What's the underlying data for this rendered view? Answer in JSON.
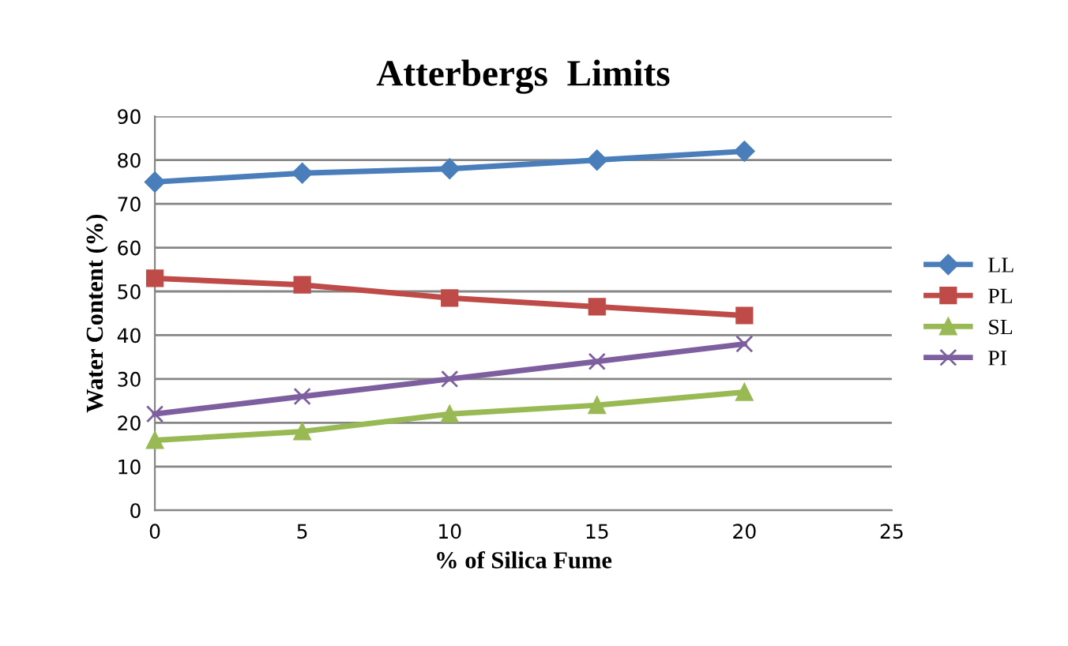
{
  "chart_data": {
    "type": "line",
    "title": "Atterbergs  Limits",
    "xlabel": "% of Silica Fume",
    "ylabel": "Water Content (%)",
    "xlim": [
      0,
      25
    ],
    "xticks": [
      0,
      5,
      10,
      15,
      20,
      25
    ],
    "ylim": [
      0,
      90
    ],
    "yticks": [
      0,
      10,
      20,
      30,
      40,
      50,
      60,
      70,
      80,
      90
    ],
    "grid": "y",
    "legend": "right",
    "series": [
      {
        "name": "LL",
        "color": "#4a7ebb",
        "marker": "diamond",
        "x": [
          0,
          5,
          10,
          15,
          20
        ],
        "values": [
          75,
          77,
          78,
          80,
          82
        ]
      },
      {
        "name": "PL",
        "color": "#be4b48",
        "marker": "square",
        "x": [
          0,
          5,
          10,
          15,
          20
        ],
        "values": [
          53,
          51.5,
          48.5,
          46.5,
          44.5
        ]
      },
      {
        "name": "SL",
        "color": "#98b954",
        "marker": "triangle",
        "x": [
          0,
          5,
          10,
          15,
          20
        ],
        "values": [
          16,
          18,
          22,
          24,
          27
        ]
      },
      {
        "name": "PI",
        "color": "#7d5fa0",
        "marker": "cross",
        "x": [
          0,
          5,
          10,
          15,
          20
        ],
        "values": [
          22,
          26,
          30,
          34,
          38
        ]
      }
    ]
  }
}
